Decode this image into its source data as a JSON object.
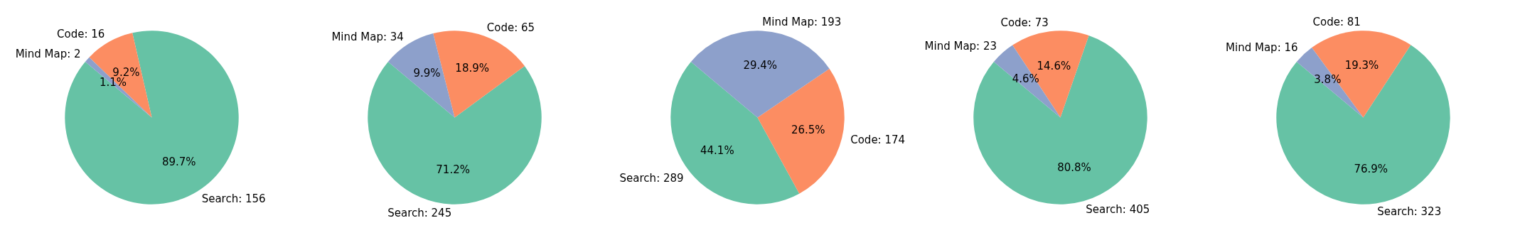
{
  "chart_data": [
    {
      "type": "pie",
      "categories": [
        "Search: 156",
        "Code: 16",
        "Mind Map: 2"
      ],
      "values": [
        89.7,
        9.2,
        1.1
      ],
      "colors": [
        "#66c2a5",
        "#fc8d62",
        "#8da0cb"
      ],
      "value_labels": [
        "89.7%",
        "9.2%",
        "1.1%"
      ]
    },
    {
      "type": "pie",
      "categories": [
        "Search: 245",
        "Code: 65",
        "Mind Map: 34"
      ],
      "values": [
        71.2,
        18.9,
        9.9
      ],
      "colors": [
        "#66c2a5",
        "#fc8d62",
        "#8da0cb"
      ],
      "value_labels": [
        "71.2%",
        "18.9%",
        "9.9%"
      ]
    },
    {
      "type": "pie",
      "categories": [
        "Search: 289",
        "Code: 174",
        "Mind Map: 193"
      ],
      "values": [
        44.1,
        26.5,
        29.4
      ],
      "colors": [
        "#66c2a5",
        "#fc8d62",
        "#8da0cb"
      ],
      "value_labels": [
        "44.1%",
        "26.5%",
        "29.4%"
      ]
    },
    {
      "type": "pie",
      "categories": [
        "Search: 405",
        "Code: 73",
        "Mind Map: 23"
      ],
      "values": [
        80.8,
        14.6,
        4.6
      ],
      "colors": [
        "#66c2a5",
        "#fc8d62",
        "#8da0cb"
      ],
      "value_labels": [
        "80.8%",
        "14.6%",
        "4.6%"
      ]
    },
    {
      "type": "pie",
      "categories": [
        "Search: 323",
        "Code: 81",
        "Mind Map: 16"
      ],
      "values": [
        76.9,
        19.3,
        3.8
      ],
      "colors": [
        "#66c2a5",
        "#fc8d62",
        "#8da0cb"
      ],
      "value_labels": [
        "76.9%",
        "19.3%",
        "3.8%"
      ]
    }
  ]
}
